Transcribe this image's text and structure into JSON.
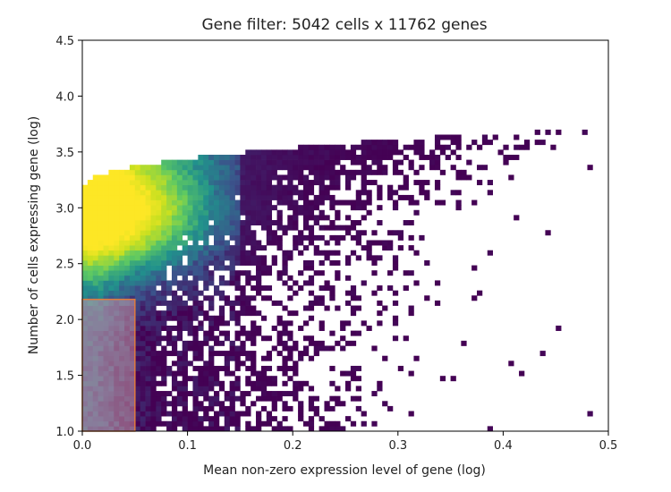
{
  "chart_data": {
    "type": "heatmap",
    "title": "Gene filter: 5042 cells x 11762 genes",
    "xlabel": "Mean non-zero expression level of gene (log)",
    "ylabel": "Number of cells expressing gene (log)",
    "xlim": [
      0.0,
      0.5
    ],
    "ylim": [
      1.0,
      4.5
    ],
    "x_ticks": [
      "0.0",
      "0.1",
      "0.2",
      "0.3",
      "0.4",
      "0.5"
    ],
    "y_ticks": [
      "1.0",
      "1.5",
      "2.0",
      "2.5",
      "3.0",
      "3.5",
      "4.0",
      "4.5"
    ],
    "colormap": [
      "#440154",
      "#3b528b",
      "#21918c",
      "#5ec962",
      "#c8e020",
      "#fde725"
    ],
    "background": "#ffffff",
    "bins": {
      "x_count": 100,
      "y_count": 60
    },
    "density_model": {
      "upper_boundary": {
        "y_at_x0": 3.15,
        "y_at_x_end": 3.7,
        "shape": "concave-saturating"
      },
      "peak_region": {
        "x": 0.02,
        "y": 2.95,
        "value": 1.0
      },
      "sparsity": "increases with x and decreases toward the upper boundary"
    },
    "filter_region": {
      "x_range": [
        0.0,
        0.05
      ],
      "y_range": [
        1.0,
        2.18
      ],
      "fill_color": "#e6b0b0",
      "edge_color": "#e07a3c",
      "fill_opacity": 0.45
    }
  }
}
